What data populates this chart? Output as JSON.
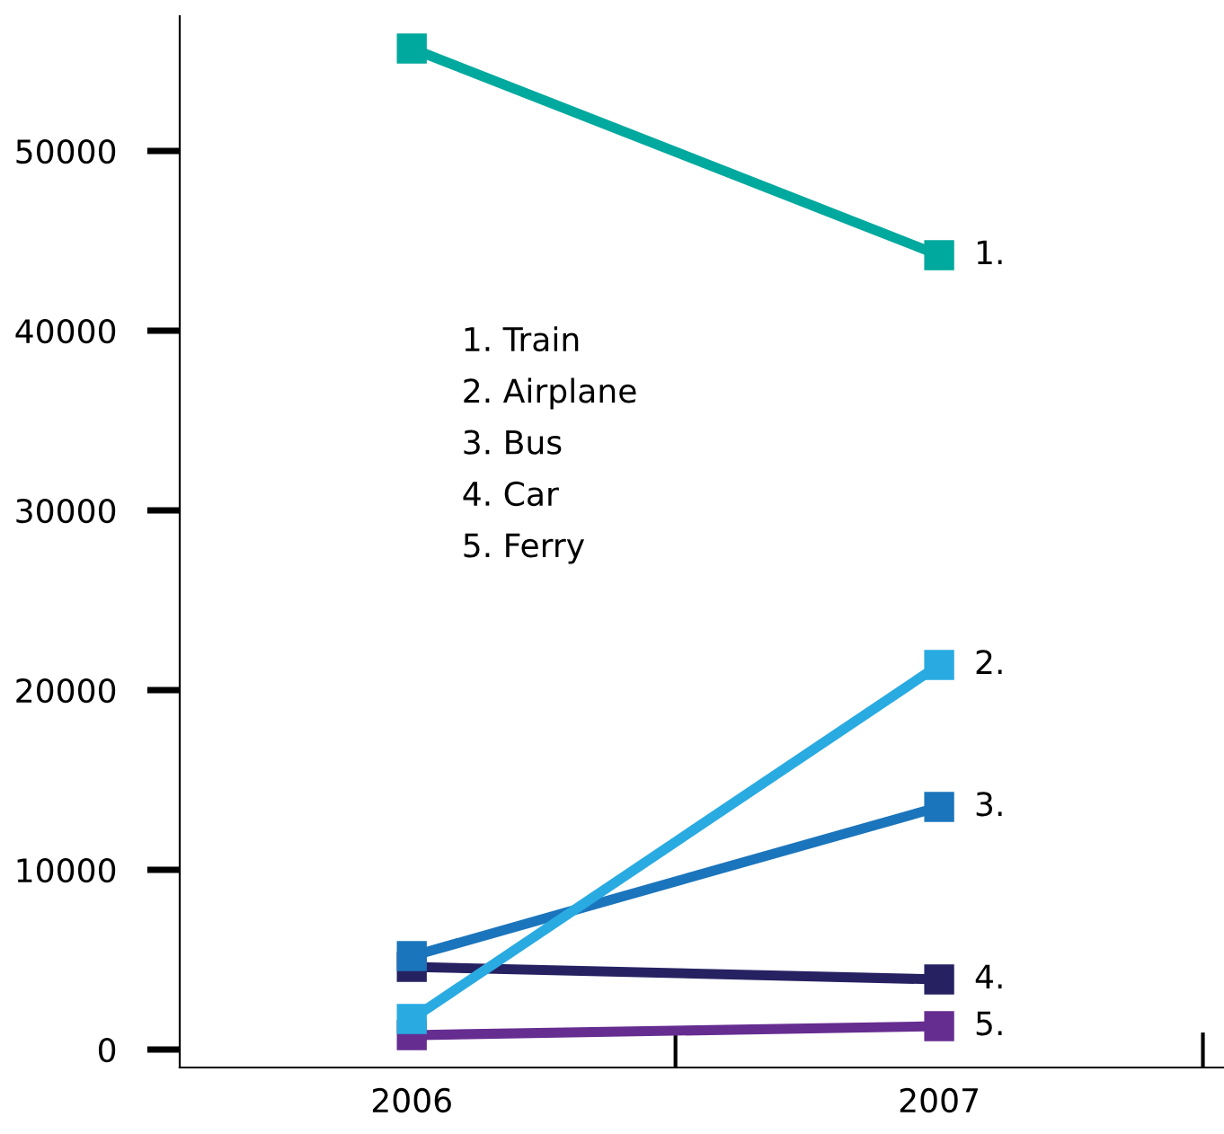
{
  "chart_data": {
    "type": "line",
    "categories": [
      "2006",
      "2007"
    ],
    "series": [
      {
        "color": "#00a99d",
        "values": [
          55700,
          44200
        ]
      },
      {
        "color": "#29abe2",
        "values": [
          1700,
          21400
        ]
      },
      {
        "color": "#1b75bc",
        "values": [
          5200,
          13500
        ]
      },
      {
        "color": "#262262",
        "values": [
          4600,
          3900
        ]
      },
      {
        "color": "#662d91",
        "values": [
          800,
          1300
        ]
      }
    ],
    "ylim": [
      -1000,
      57500
    ],
    "yticks": [
      0,
      10000,
      20000,
      30000,
      40000,
      50000
    ],
    "marker": "square",
    "line_style": "solid",
    "grid": false,
    "legend": false,
    "annotations": [
      {
        "text": "1.",
        "x": "2007",
        "y": 44200
      },
      {
        "text": "2.",
        "x": "2007",
        "y": 21400
      },
      {
        "text": "3.",
        "x": "2007",
        "y": 13500
      },
      {
        "text": "4.",
        "x": "2007",
        "y": 3900
      },
      {
        "text": "5.",
        "x": "2007",
        "y": 1300
      },
      "1. Train",
      "2. Airplane",
      "3. Bus",
      "4. Car",
      "5. Ferry"
    ]
  }
}
